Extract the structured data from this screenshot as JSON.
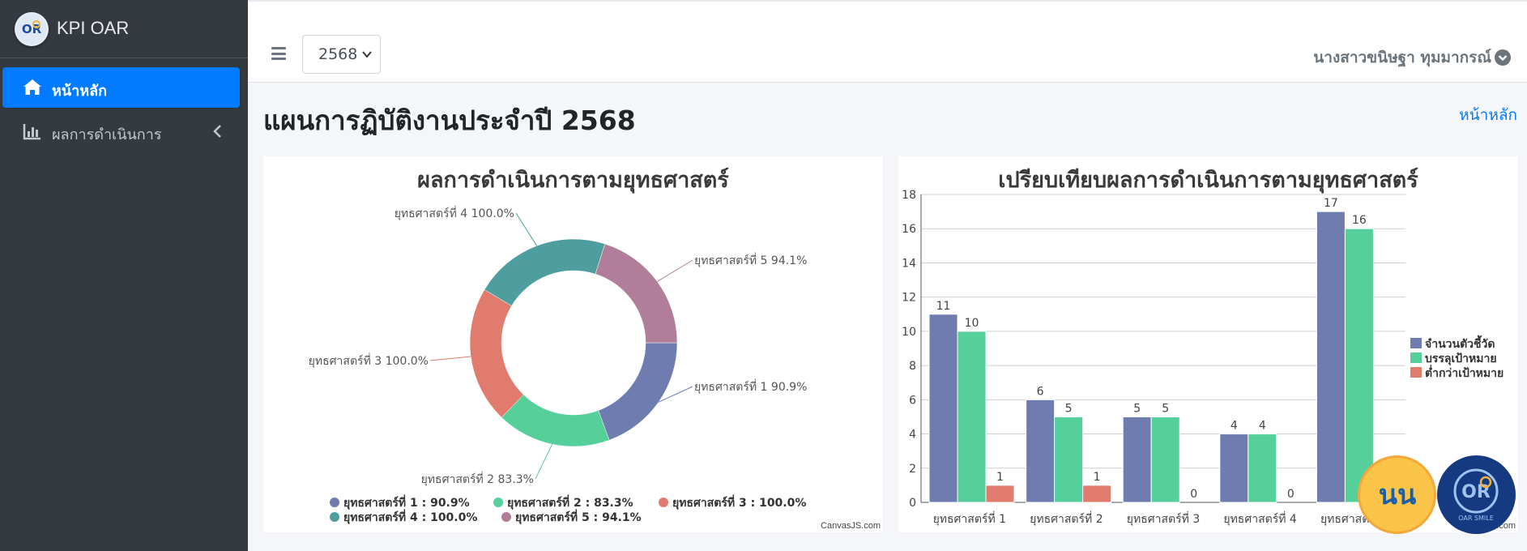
{
  "brand": {
    "name": "KPI OAR"
  },
  "sidebar": {
    "items": [
      {
        "label": "หน้าหลัก",
        "icon": "home-icon",
        "active": true
      },
      {
        "label": "ผลการดำเนินการ",
        "icon": "bar-chart-icon",
        "active": false
      }
    ]
  },
  "topbar": {
    "year_value": "2568",
    "user_name": "นางสาวขนิษฐา ทุมมากรณ์"
  },
  "content": {
    "title": "แผนการฏิบัติงานประจำปี 2568",
    "breadcrumb": "หน้าหลัก"
  },
  "colors": {
    "primary": "#007bff",
    "sidebar": "#343a40",
    "s1": "#6f7cb0",
    "s2": "#55d09a",
    "s3": "#e07b6e",
    "s4": "#4e9ea0",
    "s5": "#b07e98"
  },
  "credits": {
    "left": "CanvasJS.com",
    "right": ".com"
  },
  "chart_data": [
    {
      "type": "pie",
      "title": "ผลการดำเนินการตามยุทธศาสตร์",
      "slices": [
        {
          "label": "ยุทธศาสตร์ที่ 1",
          "value": 90.9,
          "display": "ยุทธศาสตร์ที่ 1  90.9%",
          "legend": "ยุทธศาสตร์ที่ 1 : 90.9%"
        },
        {
          "label": "ยุทธศาสตร์ที่ 2",
          "value": 83.3,
          "display": "ยุทธศาสตร์ที่ 2  83.3%",
          "legend": "ยุทธศาสตร์ที่ 2 : 83.3%"
        },
        {
          "label": "ยุทธศาสตร์ที่ 3",
          "value": 100.0,
          "display": "ยุทธศาสตร์ที่ 3  100.0%",
          "legend": "ยุทธศาสตร์ที่ 3 : 100.0%"
        },
        {
          "label": "ยุทธศาสตร์ที่ 4",
          "value": 100.0,
          "display": "ยุทธศาสตร์ที่ 4  100.0%",
          "legend": "ยุทธศาสตร์ที่ 4 : 100.0%"
        },
        {
          "label": "ยุทธศาสตร์ที่ 5",
          "value": 94.1,
          "display": "ยุทธศาสตร์ที่ 5  94.1%",
          "legend": "ยุทธศาสตร์ที่ 5 : 94.1%"
        }
      ],
      "legend_position": "bottom"
    },
    {
      "type": "bar",
      "title": "เปรียบเทียบผลการดำเนินการตามยุทธศาสตร์",
      "categories": [
        "ยุทธศาสตร์ที่ 1",
        "ยุทธศาสตร์ที่ 2",
        "ยุทธศาสตร์ที่ 3",
        "ยุทธศาสตร์ที่ 4",
        "ยุทธศาสตร์ที่ 5"
      ],
      "series": [
        {
          "name": "จำนวนตัวชี้วัด",
          "values": [
            11,
            6,
            5,
            4,
            17
          ]
        },
        {
          "name": "บรรลุเป้าหมาย",
          "values": [
            10,
            5,
            5,
            4,
            16
          ]
        },
        {
          "name": "ต่ำกว่าเป้าหมาย",
          "values": [
            1,
            1,
            0,
            0,
            0
          ]
        }
      ],
      "ylim": [
        0,
        18
      ],
      "yticks": [
        0,
        2,
        4,
        6,
        8,
        10,
        12,
        14,
        16,
        18
      ],
      "grid": true,
      "legend_position": "right"
    }
  ]
}
